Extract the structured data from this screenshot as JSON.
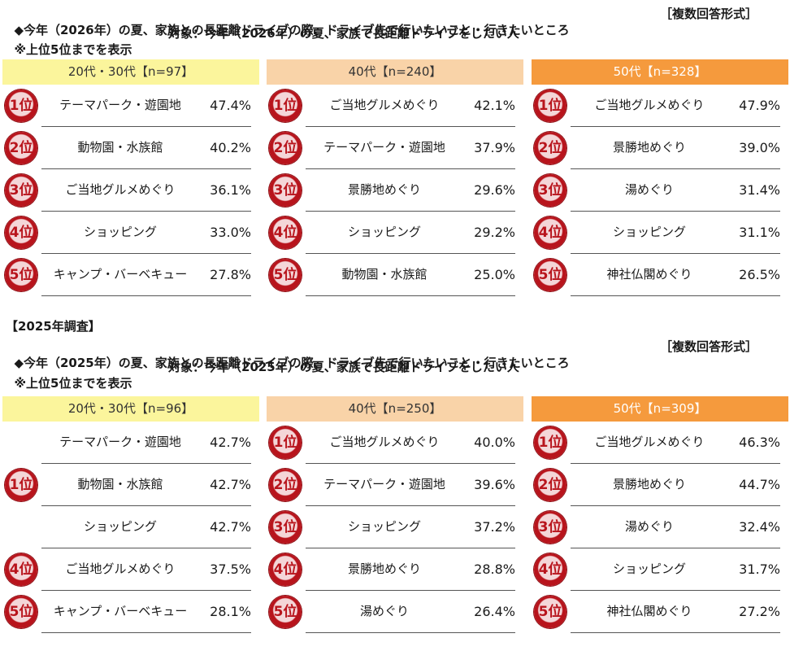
{
  "colors": {
    "header_20_30": "#fbf59c",
    "header_40": "#f9d3a8",
    "header_50": "#f59a3d",
    "badge": "#b8141c"
  },
  "icons": {
    "rank_badge": "rank-medal-icon"
  },
  "survey2026": {
    "title": "◆今年（2026年）の夏、家族との長距離ドライブの際、ドライブ先で行いたいこと・行きたいところ",
    "format": "［複数回答形式］",
    "note": "※上位5位までを表示",
    "target": "対象：今年（2026年）の夏、家族で長距離ドライブをしたい人",
    "panels": [
      {
        "header": "20代・30代【n=97】",
        "rows": [
          {
            "rank": "1位",
            "item": "テーマパーク・遊園地",
            "pct": "47.4%"
          },
          {
            "rank": "2位",
            "item": "動物園・水族館",
            "pct": "40.2%"
          },
          {
            "rank": "3位",
            "item": "ご当地グルメめぐり",
            "pct": "36.1%"
          },
          {
            "rank": "4位",
            "item": "ショッピング",
            "pct": "33.0%"
          },
          {
            "rank": "5位",
            "item": "キャンプ・バーベキュー",
            "pct": "27.8%"
          }
        ]
      },
      {
        "header": "40代【n=240】",
        "rows": [
          {
            "rank": "1位",
            "item": "ご当地グルメめぐり",
            "pct": "42.1%"
          },
          {
            "rank": "2位",
            "item": "テーマパーク・遊園地",
            "pct": "37.9%"
          },
          {
            "rank": "3位",
            "item": "景勝地めぐり",
            "pct": "29.6%"
          },
          {
            "rank": "4位",
            "item": "ショッピング",
            "pct": "29.2%"
          },
          {
            "rank": "5位",
            "item": "動物園・水族館",
            "pct": "25.0%"
          }
        ]
      },
      {
        "header": "50代【n=328】",
        "rows": [
          {
            "rank": "1位",
            "item": "ご当地グルメめぐり",
            "pct": "47.9%"
          },
          {
            "rank": "2位",
            "item": "景勝地めぐり",
            "pct": "39.0%"
          },
          {
            "rank": "3位",
            "item": "湯めぐり",
            "pct": "31.4%"
          },
          {
            "rank": "4位",
            "item": "ショッピング",
            "pct": "31.1%"
          },
          {
            "rank": "5位",
            "item": "神社仏閣めぐり",
            "pct": "26.5%"
          }
        ]
      }
    ]
  },
  "survey2025": {
    "label": "【2025年調査】",
    "title": "◆今年（2025年）の夏、家族との長距離ドライブの際、ドライブ先で行いたいこと・行きたいところ",
    "format": "［複数回答形式］",
    "note": "※上位5位までを表示",
    "target": "対象：今年（2025年）の夏、家族で長距離ドライブをしたい人",
    "panels": [
      {
        "header": "20代・30代【n=96】",
        "rows": [
          {
            "rank": "",
            "item": "テーマパーク・遊園地",
            "pct": "42.7%"
          },
          {
            "rank": "1位",
            "item": "動物園・水族館",
            "pct": "42.7%"
          },
          {
            "rank": "",
            "item": "ショッピング",
            "pct": "42.7%"
          },
          {
            "rank": "4位",
            "item": "ご当地グルメめぐり",
            "pct": "37.5%"
          },
          {
            "rank": "5位",
            "item": "キャンプ・バーベキュー",
            "pct": "28.1%"
          }
        ]
      },
      {
        "header": "40代【n=250】",
        "rows": [
          {
            "rank": "1位",
            "item": "ご当地グルメめぐり",
            "pct": "40.0%"
          },
          {
            "rank": "2位",
            "item": "テーマパーク・遊園地",
            "pct": "39.6%"
          },
          {
            "rank": "3位",
            "item": "ショッピング",
            "pct": "37.2%"
          },
          {
            "rank": "4位",
            "item": "景勝地めぐり",
            "pct": "28.8%"
          },
          {
            "rank": "5位",
            "item": "湯めぐり",
            "pct": "26.4%"
          }
        ]
      },
      {
        "header": "50代【n=309】",
        "rows": [
          {
            "rank": "1位",
            "item": "ご当地グルメめぐり",
            "pct": "46.3%"
          },
          {
            "rank": "2位",
            "item": "景勝地めぐり",
            "pct": "44.7%"
          },
          {
            "rank": "3位",
            "item": "湯めぐり",
            "pct": "32.4%"
          },
          {
            "rank": "4位",
            "item": "ショッピング",
            "pct": "31.7%"
          },
          {
            "rank": "5位",
            "item": "神社仏閣めぐり",
            "pct": "27.2%"
          }
        ]
      }
    ]
  }
}
